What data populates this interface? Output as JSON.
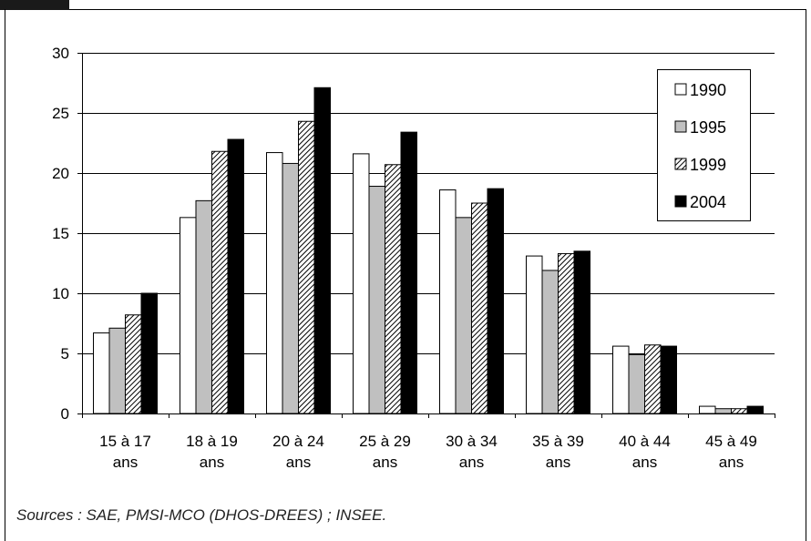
{
  "chart_data": {
    "type": "bar",
    "title": "",
    "xlabel": "",
    "ylabel": "",
    "ylim": [
      0,
      30
    ],
    "yticks": [
      0,
      5,
      10,
      15,
      20,
      25,
      30
    ],
    "grid": true,
    "legend_position": "top-right",
    "categories": [
      [
        "15 à 17",
        "ans"
      ],
      [
        "18 à 19",
        "ans"
      ],
      [
        "20 à 24",
        "ans"
      ],
      [
        "25 à 29",
        "ans"
      ],
      [
        "30 à 34",
        "ans"
      ],
      [
        "35 à 39",
        "ans"
      ],
      [
        "40 à 44",
        "ans"
      ],
      [
        "45 à 49",
        "ans"
      ]
    ],
    "series": [
      {
        "name": "1990",
        "fill": "#ffffff",
        "pattern": "none",
        "values": [
          6.7,
          16.3,
          21.7,
          21.6,
          18.6,
          13.1,
          5.6,
          0.6
        ]
      },
      {
        "name": "1995",
        "fill": "#c0c0c0",
        "pattern": "none",
        "values": [
          7.1,
          17.7,
          20.8,
          18.9,
          16.3,
          11.9,
          4.9,
          0.4
        ]
      },
      {
        "name": "1999",
        "fill": "#ffffff",
        "pattern": "diagonal-hatch",
        "values": [
          8.2,
          21.8,
          24.3,
          20.7,
          17.5,
          13.3,
          5.7,
          0.4
        ]
      },
      {
        "name": "2004",
        "fill": "#000000",
        "pattern": "none",
        "values": [
          10.0,
          22.8,
          27.1,
          23.4,
          18.7,
          13.5,
          5.6,
          0.6
        ]
      }
    ]
  },
  "source_note": "Sources : SAE, PMSI-MCO (DHOS-DREES)  ; INSEE."
}
